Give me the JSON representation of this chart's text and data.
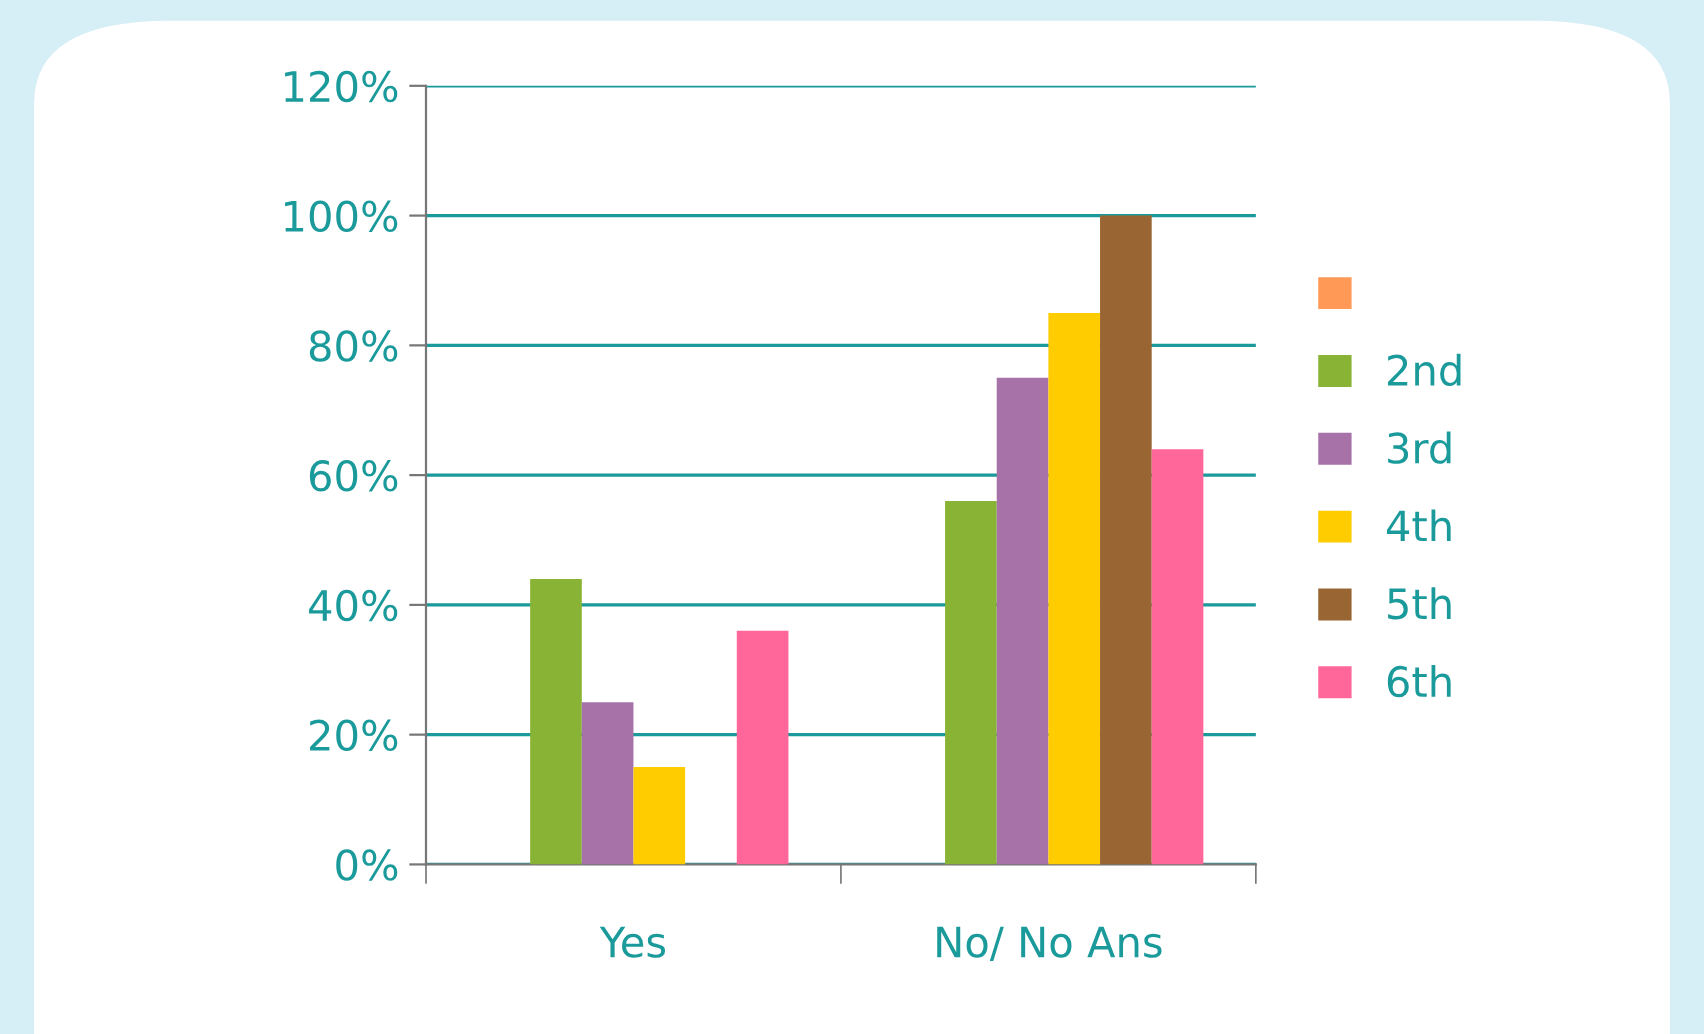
{
  "chart_data": {
    "type": "bar",
    "categories": [
      "Yes",
      "No/ No Ans"
    ],
    "series": [
      {
        "color": "#ff9955",
        "values": [
          0,
          0
        ]
      },
      {
        "name": "2nd",
        "color": "#88b334",
        "values": [
          44,
          56
        ]
      },
      {
        "name": "3rd",
        "color": "#a672a8",
        "values": [
          25,
          75
        ]
      },
      {
        "name": "4th",
        "color": "#ffcc00",
        "values": [
          15,
          85
        ]
      },
      {
        "name": "5th",
        "color": "#996633",
        "values": [
          0,
          100
        ]
      },
      {
        "name": "6th",
        "color": "#ff6699",
        "values": [
          36,
          64
        ]
      }
    ],
    "ylim": [
      0,
      120
    ],
    "yticks": [
      {
        "value": 0,
        "label": "0%"
      },
      {
        "value": 20,
        "label": "20%"
      },
      {
        "value": 40,
        "label": "40%"
      },
      {
        "value": 60,
        "label": "60%"
      },
      {
        "value": 80,
        "label": "80%"
      },
      {
        "value": 100,
        "label": "100%"
      },
      {
        "value": 120,
        "label": "120%"
      }
    ],
    "grid": "y",
    "legend": "right"
  }
}
